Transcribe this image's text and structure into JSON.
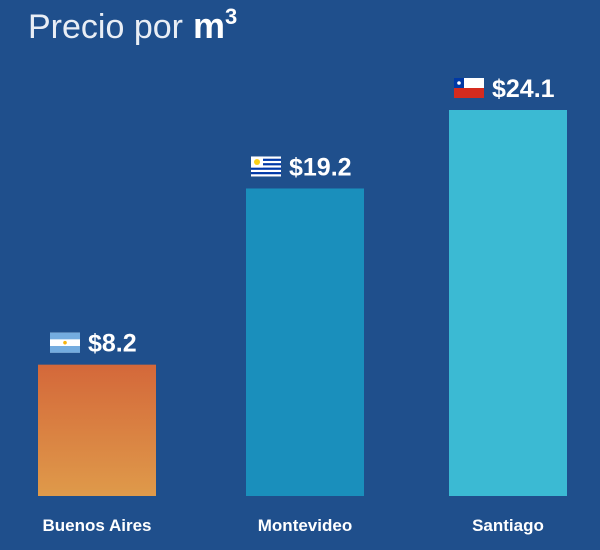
{
  "title": {
    "prefix": "Precio por",
    "unit": "m",
    "superscript": "3"
  },
  "colors": {
    "background": "#1f4f8c",
    "buenos_aires_top": "#d4683a",
    "buenos_aires_bottom": "#df9a4a",
    "montevideo": "#1a8fbc",
    "santiago": "#3bbad3"
  },
  "chart_data": {
    "type": "bar",
    "title": "Precio por m³",
    "categories": [
      "Buenos Aires",
      "Montevideo",
      "Santiago"
    ],
    "values": [
      8.2,
      19.2,
      24.1
    ],
    "value_labels": [
      "$8.2",
      "$19.2",
      "$24.1"
    ],
    "flags": [
      "argentina-flag-icon",
      "uruguay-flag-icon",
      "chile-flag-icon"
    ],
    "ylim": [
      0,
      24.1
    ],
    "grid": false,
    "legend": "none"
  }
}
